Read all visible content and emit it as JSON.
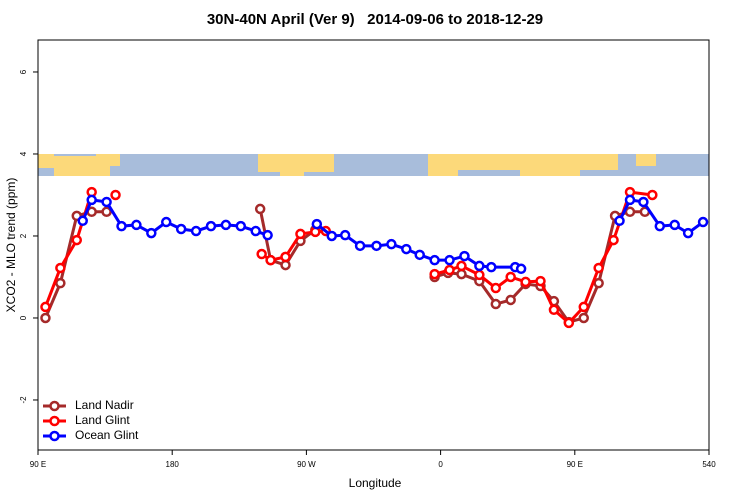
{
  "chart_data": {
    "type": "line",
    "title": "30N-40N April (Ver 9)   2014-09-06 to 2018-12-29",
    "x_label": "Longitude",
    "y_label": "XCO2 - MLO trend (ppm)",
    "xlim": [
      90,
      540
    ],
    "ylim": [
      -3.22,
      6.78
    ],
    "xticks": [
      {
        "value": 90,
        "label": "90 E"
      },
      180,
      {
        "value": 270,
        "label": "90 W"
      },
      {
        "value": 360,
        "label": "0"
      },
      {
        "value": 450,
        "label": "90 E"
      },
      540
    ],
    "yticks": [
      -2,
      0,
      2,
      4,
      6
    ],
    "legend": "bottom-left",
    "series": [
      {
        "name": "Land Nadir",
        "color": "#a52a2a",
        "x": [
          95,
          105,
          116,
          126,
          136,
          null,
          239,
          246,
          256,
          266,
          276,
          null,
          356,
          365,
          374,
          386,
          397,
          407,
          417,
          427,
          436,
          446,
          456,
          466,
          477,
          487,
          497
        ],
        "values": [
          0,
          0.85,
          2.49,
          2.59,
          2.59,
          null,
          2.66,
          1.41,
          1.29,
          1.88,
          2.15,
          null,
          1.0,
          1.1,
          1.07,
          0.9,
          0.34,
          0.44,
          0.83,
          0.78,
          0.41,
          -0.1,
          0,
          0.85,
          2.49,
          2.59,
          2.59
        ]
      },
      {
        "name": "Land Glint",
        "color": "#ff0000",
        "x": [
          95,
          105,
          116,
          126,
          null,
          142,
          null,
          240,
          246,
          256,
          266,
          276,
          283,
          null,
          356,
          366,
          374,
          386,
          397,
          407,
          417,
          427,
          436,
          446,
          456,
          466,
          476,
          487,
          502
        ],
        "values": [
          0.27,
          1.22,
          1.9,
          3.07,
          null,
          3.0,
          null,
          1.56,
          1.41,
          1.49,
          2.05,
          2.1,
          2.12,
          null,
          1.07,
          1.17,
          1.27,
          1.05,
          0.73,
          1.0,
          0.88,
          0.9,
          0.2,
          -0.12,
          0.27,
          1.22,
          1.9,
          3.07,
          3.0
        ]
      },
      {
        "name": "Ocean Glint",
        "color": "#0000ff",
        "x": [
          120,
          126,
          136,
          146,
          156,
          166,
          176,
          186,
          196,
          206,
          216,
          226,
          236,
          244,
          null,
          277,
          287,
          296,
          306,
          317,
          327,
          337,
          346,
          356,
          366,
          376,
          386,
          394,
          410,
          414,
          null,
          480,
          487,
          496,
          507,
          517,
          526,
          536
        ],
        "values": [
          2.37,
          2.88,
          2.83,
          2.24,
          2.27,
          2.07,
          2.34,
          2.17,
          2.12,
          2.24,
          2.27,
          2.24,
          2.12,
          2.02,
          null,
          2.29,
          2.0,
          2.02,
          1.76,
          1.76,
          1.8,
          1.68,
          1.54,
          1.41,
          1.41,
          1.51,
          1.27,
          1.24,
          1.24,
          1.2,
          null,
          2.37,
          2.88,
          2.83,
          2.24,
          2.27,
          2.07,
          2.34
        ]
      }
    ]
  }
}
